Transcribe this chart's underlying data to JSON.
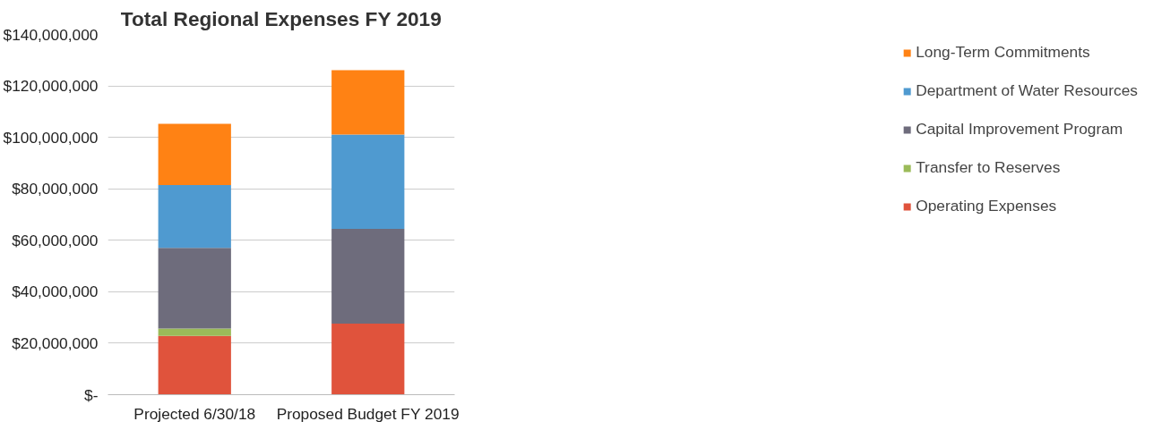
{
  "chart_data": {
    "type": "bar",
    "title": "Total Regional Expenses FY 2019",
    "stacked": true,
    "categories": [
      "Projected 6/30/18",
      "Proposed Budget FY 2019"
    ],
    "series": [
      {
        "name": "Operating Expenses",
        "color": "#e0533c",
        "values": [
          22800000,
          27600000
        ]
      },
      {
        "name": "Transfer to Reserves",
        "color": "#9bbb59",
        "values": [
          2900000,
          0
        ]
      },
      {
        "name": "Capital Improvement Program",
        "color": "#6e6c7c",
        "values": [
          31400000,
          36800000
        ]
      },
      {
        "name": "Department of Water Resources",
        "color": "#4f9ad0",
        "values": [
          24400000,
          36700000
        ]
      },
      {
        "name": "Long-Term Commitments",
        "color": "#ff8214",
        "values": [
          23800000,
          25000000
        ]
      }
    ],
    "ylim": [
      0,
      140000000
    ],
    "yticks": [
      {
        "value": 0,
        "label": "$-"
      },
      {
        "value": 20000000,
        "label": "$20,000,000"
      },
      {
        "value": 40000000,
        "label": "$40,000,000"
      },
      {
        "value": 60000000,
        "label": "$60,000,000"
      },
      {
        "value": 80000000,
        "label": "$80,000,000"
      },
      {
        "value": 100000000,
        "label": "$100,000,000"
      },
      {
        "value": 120000000,
        "label": "$120,000,000"
      },
      {
        "value": 140000000,
        "label": "$140,000,000"
      }
    ],
    "grid": "y",
    "legend": "right"
  }
}
